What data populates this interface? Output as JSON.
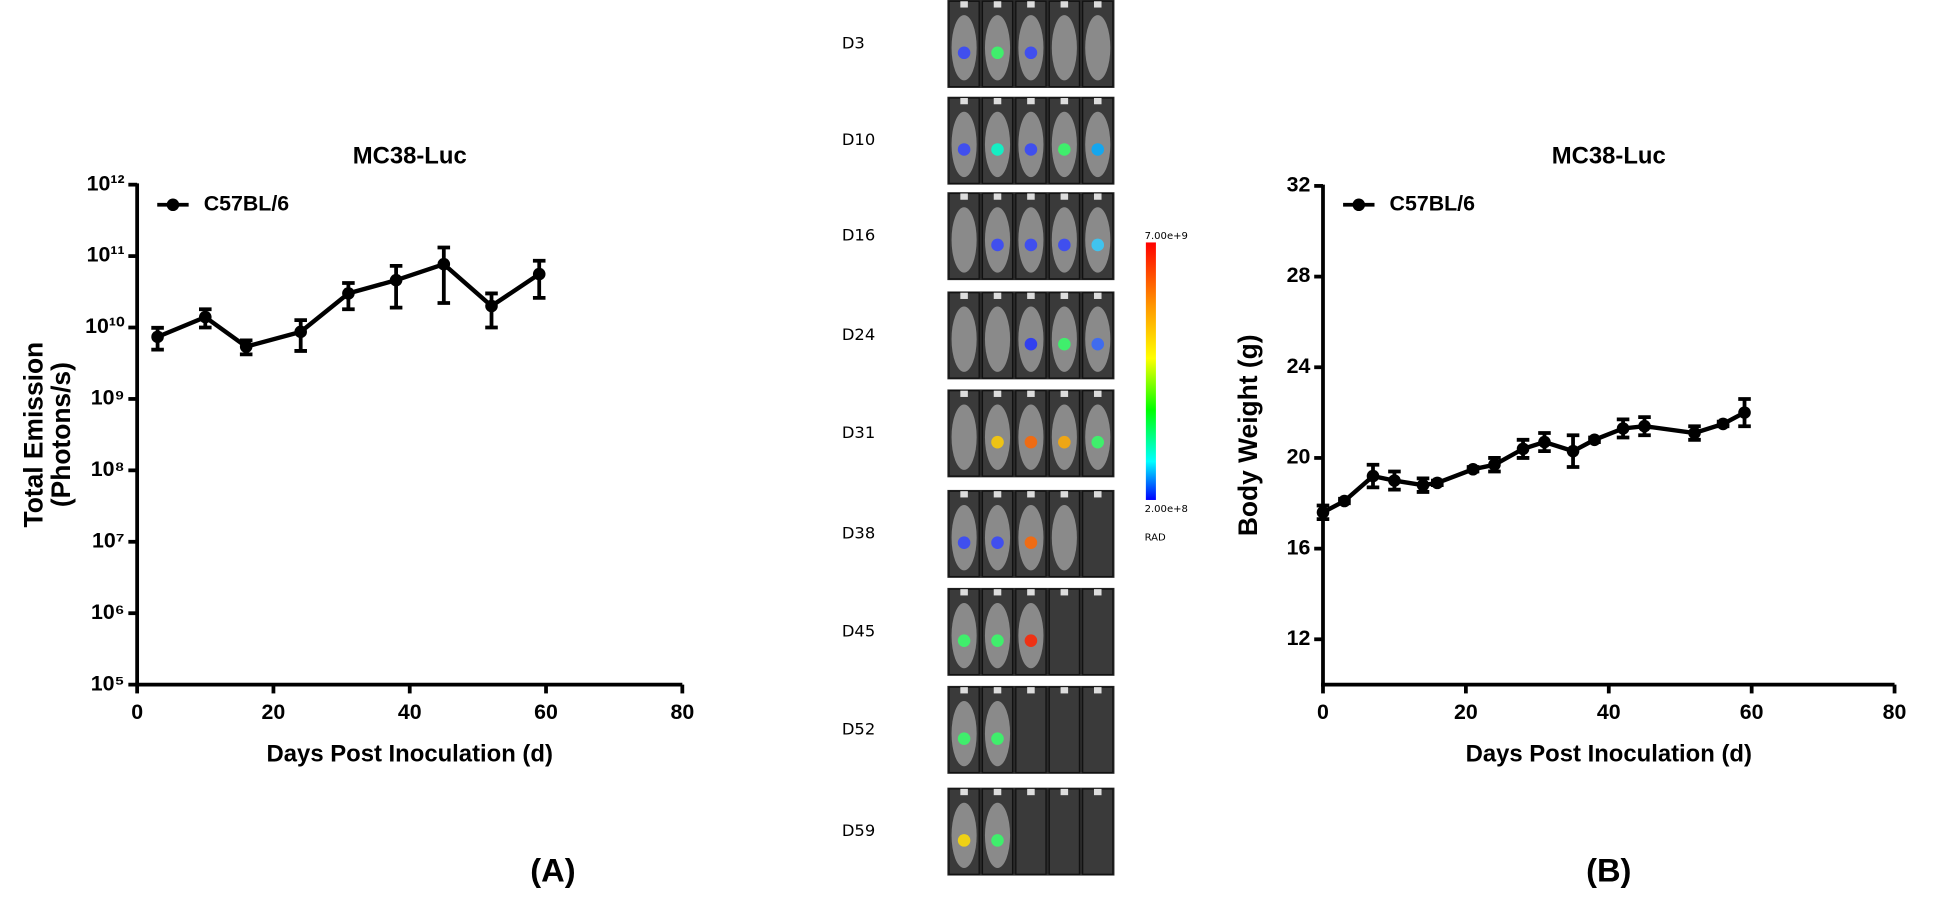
{
  "chart_data": [
    {
      "type": "line",
      "title": "MC38-Luc",
      "xlabel": "Days Post Inoculation (d)",
      "ylabel": [
        "Total Emission",
        "(Photons/s)"
      ],
      "panel_label": "(A)",
      "x": [
        3,
        10,
        16,
        24,
        31,
        38,
        45,
        52,
        59
      ],
      "series": [
        {
          "name": "C57BL/6",
          "color": "#000000",
          "values": [
            7400000000,
            14000000000,
            5400000000,
            8700000000,
            30000000000,
            46000000000,
            77000000000,
            20000000000,
            56000000000
          ],
          "errors": [
            2500000000,
            4000000000,
            1200000000,
            4000000000,
            12000000000,
            27000000000,
            55000000000,
            10000000000,
            30000000000
          ]
        }
      ],
      "xlim": [
        0,
        80
      ],
      "xticks": [
        0,
        20,
        40,
        60,
        80
      ],
      "ylim": [
        100000,
        1000000000000
      ],
      "log_y": true,
      "yticks": [
        {
          "value": 100000,
          "label": "10⁵"
        },
        {
          "value": 1000000,
          "label": "10⁶"
        },
        {
          "value": 10000000,
          "label": "10⁷"
        },
        {
          "value": 100000000,
          "label": "10⁸"
        },
        {
          "value": 1000000000,
          "label": "10⁹"
        },
        {
          "value": 10000000000,
          "label": "10¹⁰"
        },
        {
          "value": 100000000000,
          "label": "10¹¹"
        },
        {
          "value": 1000000000000,
          "label": "10¹²"
        }
      ],
      "legend": "upper left"
    },
    {
      "type": "line",
      "title": "MC38-Luc",
      "xlabel": "Days Post Inoculation (d)",
      "ylabel": [
        "Body Weight (g)"
      ],
      "panel_label": "(B)",
      "x": [
        0,
        3,
        7,
        10,
        14,
        16,
        21,
        24,
        28,
        31,
        35,
        38,
        42,
        45,
        52,
        56,
        59
      ],
      "series": [
        {
          "name": "C57BL/6",
          "color": "#000000",
          "values": [
            17.6,
            18.1,
            19.2,
            19.0,
            18.8,
            18.9,
            19.5,
            19.7,
            20.4,
            20.7,
            20.3,
            20.8,
            21.3,
            21.4,
            21.1,
            21.5,
            22.0
          ],
          "errors": [
            0.3,
            0.1,
            0.5,
            0.4,
            0.3,
            0.1,
            0.1,
            0.3,
            0.4,
            0.4,
            0.7,
            0.1,
            0.4,
            0.4,
            0.3,
            0.1,
            0.6
          ]
        }
      ],
      "xlim": [
        0,
        80
      ],
      "xticks": [
        0,
        20,
        40,
        60,
        80
      ],
      "ylim": [
        10,
        32
      ],
      "log_y": false,
      "yticks": [
        12,
        16,
        20,
        24,
        28,
        32
      ],
      "legend": "upper left"
    }
  ],
  "imaging_panel": {
    "days": [
      "D3",
      "D10",
      "D16",
      "D24",
      "D31",
      "D38",
      "D45",
      "D52",
      "D59"
    ],
    "colorbar_max": "7.00e+9",
    "colorbar_min": "2.00e+8",
    "colorbar_unit": "RAD"
  }
}
